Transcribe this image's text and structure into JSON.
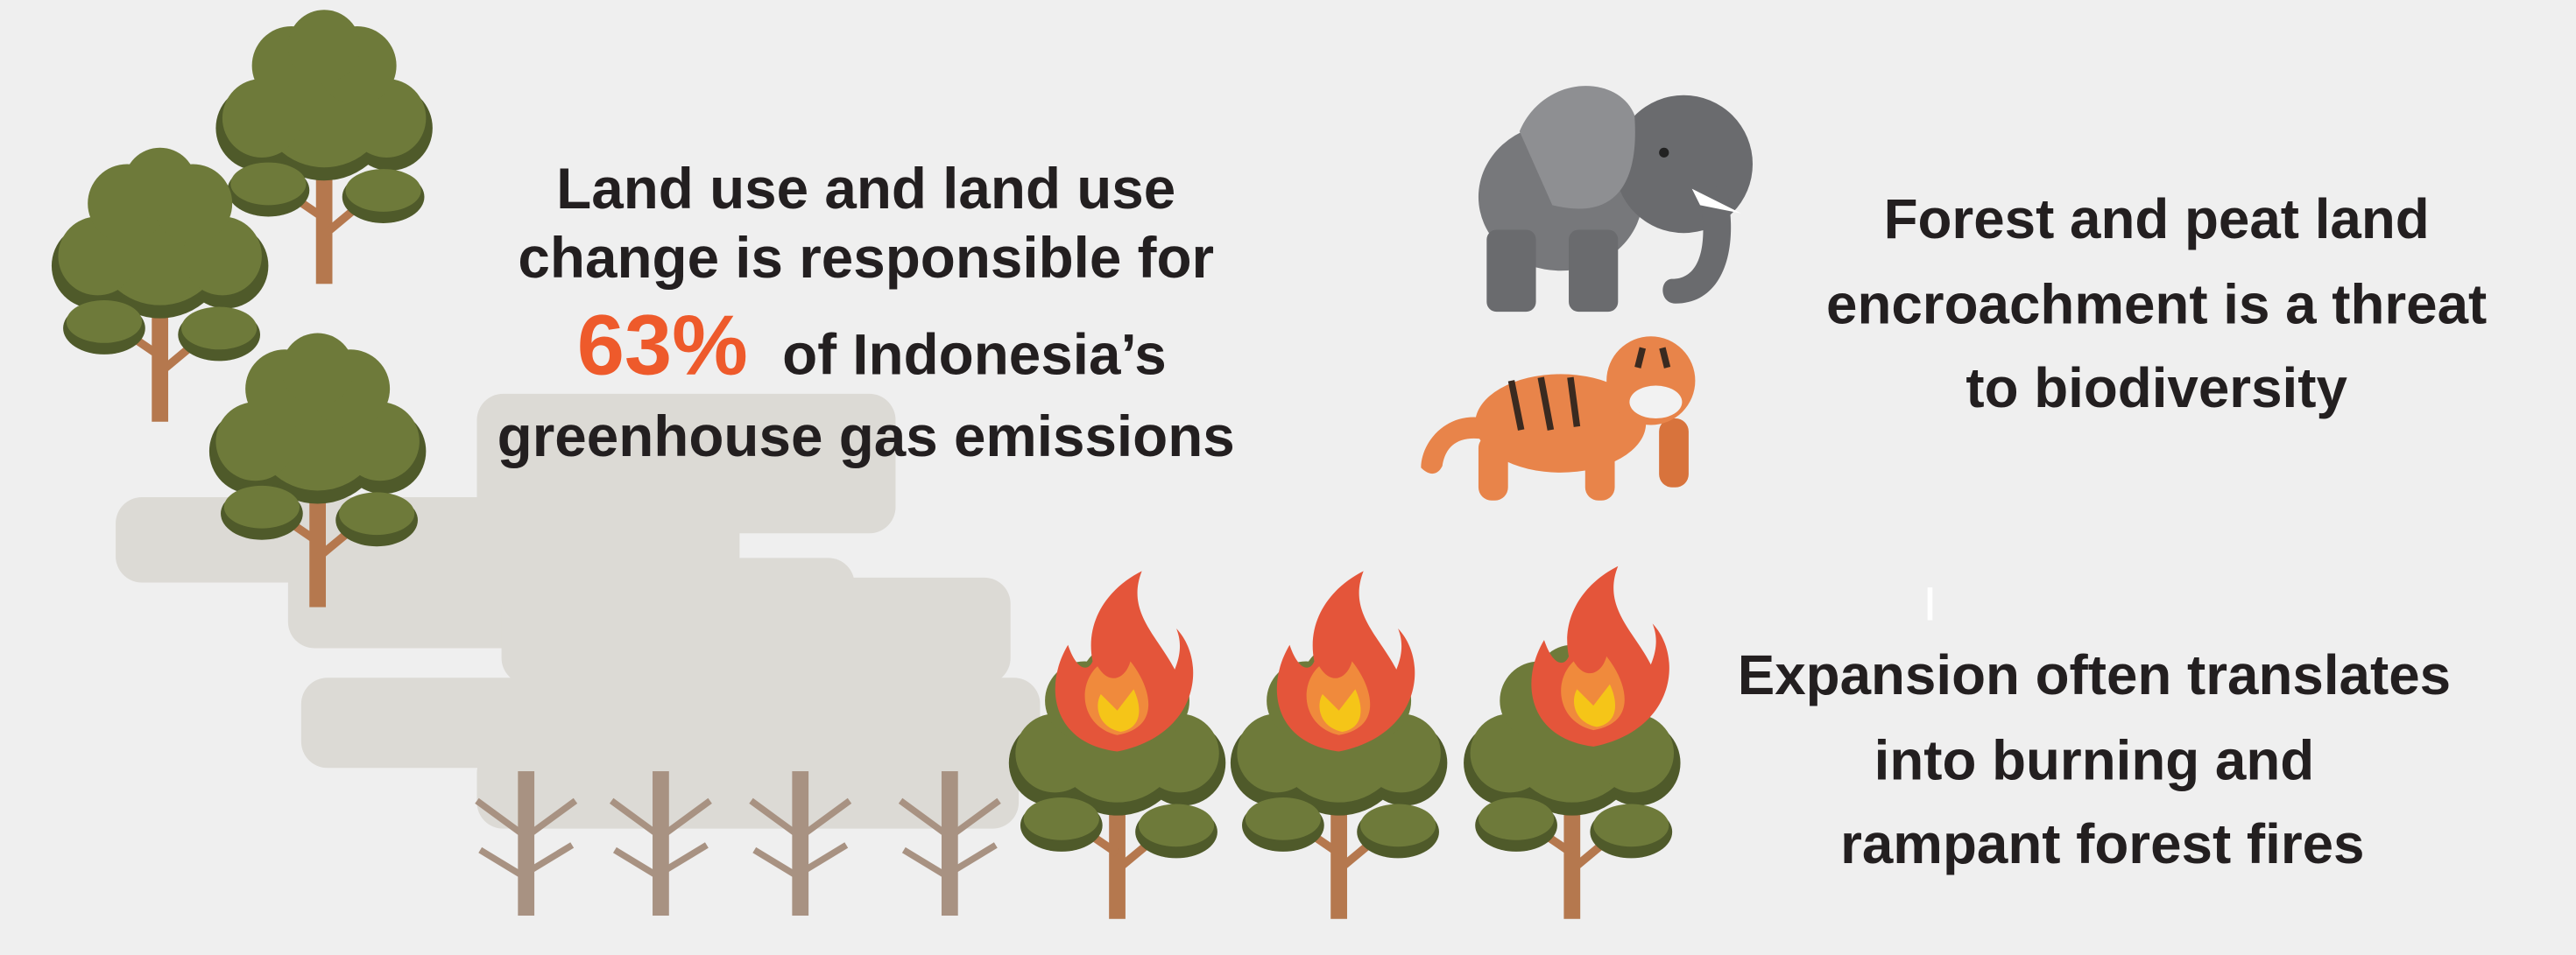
{
  "stat": {
    "lines": [
      "Land use and land use",
      "change is responsible for"
    ],
    "highlight": "63%",
    "highlight_rest": "of Indonesia’s",
    "last": "greenhouse gas emissions"
  },
  "biodiversity": {
    "lines": [
      "Forest and peat land",
      "encroachment is a threat",
      "to biodiversity"
    ]
  },
  "fires": {
    "lines": [
      "Expansion often translates",
      "into burning and",
      "rampant forest fires"
    ]
  }
}
